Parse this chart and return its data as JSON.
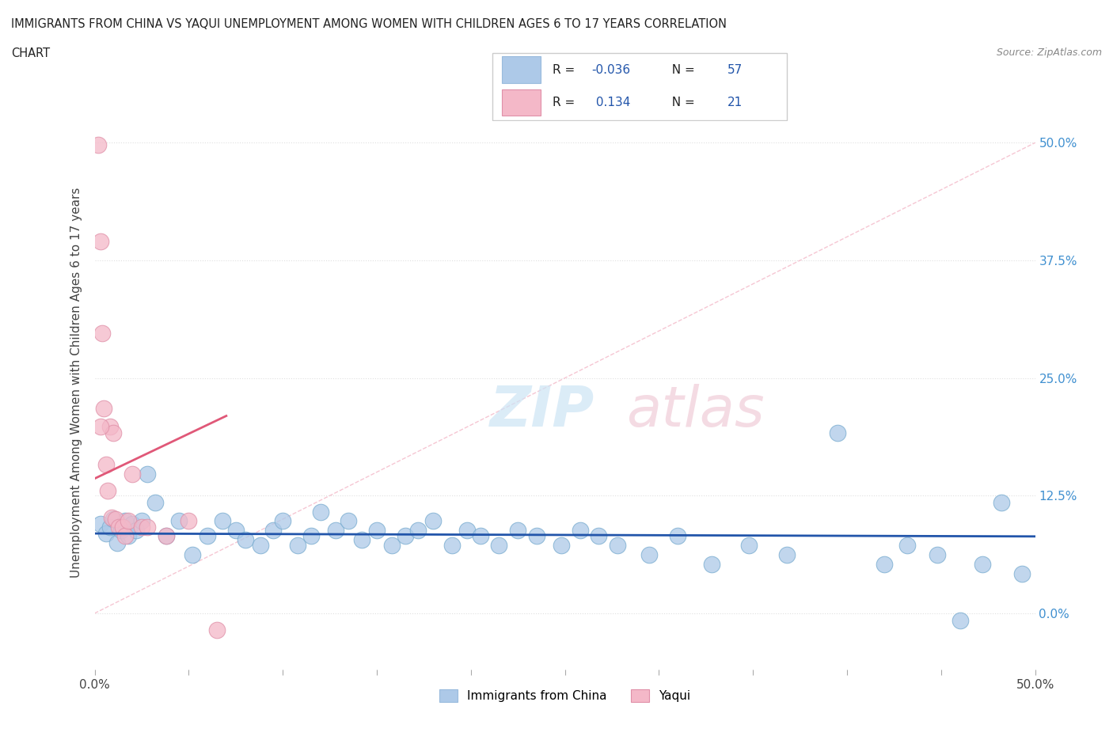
{
  "title_line1": "IMMIGRANTS FROM CHINA VS YAQUI UNEMPLOYMENT AMONG WOMEN WITH CHILDREN AGES 6 TO 17 YEARS CORRELATION",
  "title_line2": "CHART",
  "source": "Source: ZipAtlas.com",
  "ylabel": "Unemployment Among Women with Children Ages 6 to 17 years",
  "xlim": [
    0.0,
    0.5
  ],
  "ylim": [
    -0.06,
    0.55
  ],
  "r_china": -0.036,
  "n_china": 57,
  "r_yaqui": 0.134,
  "n_yaqui": 21,
  "china_color": "#adc9e8",
  "yaqui_color": "#f4b8c8",
  "china_line_color": "#2255aa",
  "yaqui_line_color": "#e05878",
  "diag_line_color": "#f4b8c8",
  "grid_color": "#e0e0e0",
  "right_tick_color": "#4090d0",
  "china_points_x": [
    0.003,
    0.006,
    0.008,
    0.01,
    0.012,
    0.014,
    0.016,
    0.018,
    0.02,
    0.022,
    0.025,
    0.028,
    0.032,
    0.038,
    0.045,
    0.052,
    0.06,
    0.068,
    0.075,
    0.08,
    0.088,
    0.095,
    0.1,
    0.108,
    0.115,
    0.12,
    0.128,
    0.135,
    0.142,
    0.15,
    0.158,
    0.165,
    0.172,
    0.18,
    0.19,
    0.198,
    0.205,
    0.215,
    0.225,
    0.235,
    0.248,
    0.258,
    0.268,
    0.278,
    0.295,
    0.31,
    0.328,
    0.348,
    0.368,
    0.395,
    0.42,
    0.432,
    0.448,
    0.46,
    0.472,
    0.482,
    0.493
  ],
  "china_points_y": [
    0.095,
    0.085,
    0.092,
    0.1,
    0.075,
    0.088,
    0.098,
    0.082,
    0.095,
    0.088,
    0.098,
    0.148,
    0.118,
    0.082,
    0.098,
    0.062,
    0.082,
    0.098,
    0.088,
    0.078,
    0.072,
    0.088,
    0.098,
    0.072,
    0.082,
    0.108,
    0.088,
    0.098,
    0.078,
    0.088,
    0.072,
    0.082,
    0.088,
    0.098,
    0.072,
    0.088,
    0.082,
    0.072,
    0.088,
    0.082,
    0.072,
    0.088,
    0.082,
    0.072,
    0.062,
    0.082,
    0.052,
    0.072,
    0.062,
    0.192,
    0.052,
    0.072,
    0.062,
    -0.008,
    0.052,
    0.118,
    0.042
  ],
  "yaqui_points_x": [
    0.002,
    0.003,
    0.004,
    0.005,
    0.006,
    0.007,
    0.008,
    0.009,
    0.01,
    0.011,
    0.013,
    0.015,
    0.016,
    0.018,
    0.02,
    0.025,
    0.028,
    0.038,
    0.05,
    0.065,
    0.003
  ],
  "yaqui_points_y": [
    0.498,
    0.395,
    0.298,
    0.218,
    0.158,
    0.13,
    0.198,
    0.102,
    0.192,
    0.1,
    0.092,
    0.092,
    0.082,
    0.098,
    0.148,
    0.092,
    0.092,
    0.082,
    0.098,
    -0.018,
    0.198
  ]
}
